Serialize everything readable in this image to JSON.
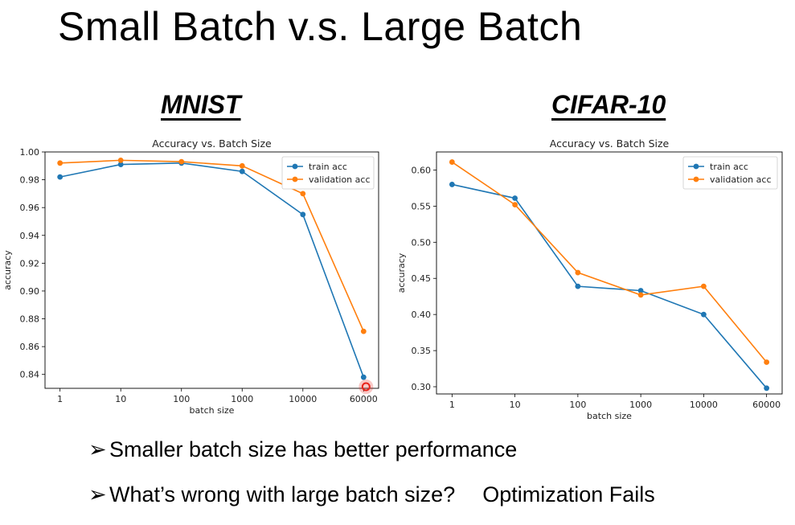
{
  "slide": {
    "title": "Small Batch v.s. Large Batch",
    "bullets": [
      {
        "text": "Smaller batch size has better performance"
      },
      {
        "text": "What’s wrong with large batch size?",
        "extra": "Optimization Fails"
      }
    ]
  },
  "colors": {
    "train": "#1f77b4",
    "validation": "#ff7f0e",
    "highlight": "#e8231a"
  },
  "chart_data": [
    {
      "heading": "MNIST",
      "type": "line",
      "title": "Accuracy vs. Batch Size",
      "xlabel": "batch size",
      "ylabel": "accuracy",
      "categories": [
        "1",
        "10",
        "100",
        "1000",
        "10000",
        "60000"
      ],
      "ylim": [
        0.83,
        1.0
      ],
      "yticks": [
        0.84,
        0.86,
        0.88,
        0.9,
        0.92,
        0.94,
        0.96,
        0.98,
        1.0
      ],
      "ytick_labels": [
        "0.84",
        "0.86",
        "0.88",
        "0.90",
        "0.92",
        "0.94",
        "0.96",
        "0.98",
        "1.00"
      ],
      "legend_position": "top-right",
      "grid": false,
      "series": [
        {
          "name": "train acc",
          "values": [
            0.982,
            0.991,
            0.992,
            0.986,
            0.955,
            0.838
          ]
        },
        {
          "name": "validation acc",
          "values": [
            0.992,
            0.994,
            0.993,
            0.99,
            0.97,
            0.871
          ]
        }
      ]
    },
    {
      "heading": "CIFAR-10",
      "type": "line",
      "title": "Accuracy vs. Batch Size",
      "xlabel": "batch size",
      "ylabel": "accuracy",
      "categories": [
        "1",
        "10",
        "100",
        "1000",
        "10000",
        "60000"
      ],
      "ylim": [
        0.29,
        0.625
      ],
      "yticks": [
        0.3,
        0.35,
        0.4,
        0.45,
        0.5,
        0.55,
        0.6
      ],
      "ytick_labels": [
        "0.30",
        "0.35",
        "0.40",
        "0.45",
        "0.50",
        "0.55",
        "0.60"
      ],
      "legend_position": "top-right",
      "grid": false,
      "series": [
        {
          "name": "train acc",
          "values": [
            0.58,
            0.561,
            0.439,
            0.433,
            0.4,
            0.298
          ]
        },
        {
          "name": "validation acc",
          "values": [
            0.611,
            0.552,
            0.458,
            0.427,
            0.439,
            0.334
          ]
        }
      ]
    }
  ]
}
